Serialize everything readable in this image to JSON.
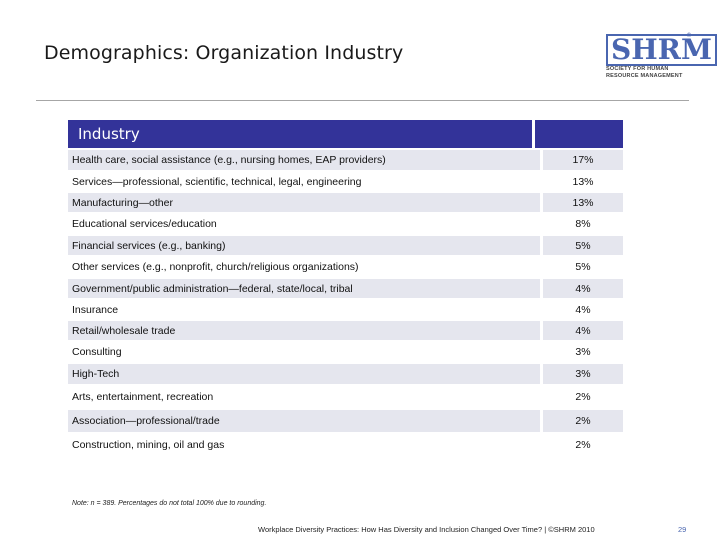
{
  "title": "Demographics: Organization Industry",
  "logo": {
    "mark": "SHRM",
    "registered": "®",
    "line1": "SOCIETY FOR HUMAN",
    "line2": "RESOURCE MANAGEMENT"
  },
  "table": {
    "header": "Industry",
    "rows": [
      {
        "label": "Health care, social assistance (e.g., nursing homes, EAP providers)",
        "value": "17%"
      },
      {
        "label": "Services—professional, scientific, technical, legal, engineering",
        "value": "13%"
      },
      {
        "label": "Manufacturing—other",
        "value": "13%"
      },
      {
        "label": "Educational services/education",
        "value": "8%"
      },
      {
        "label": "Financial services (e.g., banking)",
        "value": "5%"
      },
      {
        "label": "Other services (e.g., nonprofit, church/religious organizations)",
        "value": "5%"
      },
      {
        "label": "Government/public administration—federal, state/local, tribal",
        "value": "4%"
      },
      {
        "label": "Insurance",
        "value": "4%"
      },
      {
        "label": "Retail/wholesale trade",
        "value": "4%"
      },
      {
        "label": "Consulting",
        "value": "3%"
      },
      {
        "label": "High-Tech",
        "value": "3%"
      },
      {
        "label": "Arts, entertainment, recreation",
        "value": "2%"
      },
      {
        "label": "Association—professional/trade",
        "value": "2%"
      },
      {
        "label": "Construction, mining, oil and gas",
        "value": "2%"
      }
    ]
  },
  "note": "Note: n = 389. Percentages do not total 100% due to rounding.",
  "footer": "Workplace Diversity Practices: How Has Diversity and Inclusion Changed Over Time? | ©SHRM 2010",
  "page_number": "29"
}
